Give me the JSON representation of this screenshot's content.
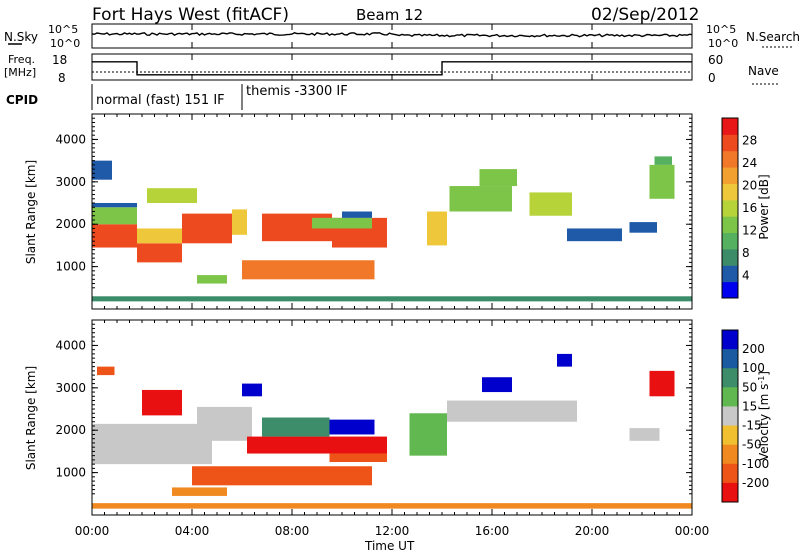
{
  "header": {
    "station": "Fort Hays West (fitACF)",
    "beam": "Beam 12",
    "date": "02/Sep/2012"
  },
  "noise_panel": {
    "left_label": "N.Sky",
    "right_label": "N.Search",
    "ticks": [
      "10^5",
      "10^0"
    ]
  },
  "freq_panel": {
    "left_label_1": "Freq.",
    "left_label_2": "[MHz]",
    "left_ticks": [
      "18",
      "8"
    ],
    "right_label": "Nave",
    "right_ticks": [
      "60",
      "0"
    ]
  },
  "cpid_panel": {
    "label": "CPID",
    "modes": [
      "normal (fast) 151 IF",
      "themis -3300 IF"
    ]
  },
  "power_colorbar": {
    "label": "Power [dB]",
    "ticks": [
      "28",
      "24",
      "20",
      "16",
      "12",
      "8",
      "4"
    ],
    "colors": [
      "#0000ee",
      "#1f5aa8",
      "#3c8c6a",
      "#55b060",
      "#7cc548",
      "#b6d43a",
      "#eec83a",
      "#f2a030",
      "#f07828",
      "#ee4a20",
      "#e81818"
    ]
  },
  "velocity_colorbar": {
    "label": "Velocity [m s",
    "exp": "-1",
    "close": "]",
    "ticks": [
      "200",
      "100",
      "50",
      "15",
      "-15",
      "-50",
      "-100",
      "-200"
    ],
    "colors": [
      "#0000cc",
      "#1a5aa0",
      "#3d8c6a",
      "#62b850",
      "#c8c8c8",
      "#f0c030",
      "#f08a20",
      "#ee5418",
      "#e81010"
    ]
  },
  "axes": {
    "ylabel": "Slant Range [km]",
    "yticks": [
      "4000",
      "3000",
      "2000",
      "1000"
    ],
    "xticks": [
      "00:00",
      "04:00",
      "08:00",
      "12:00",
      "16:00",
      "20:00",
      "00:00"
    ],
    "xlabel": "Time UT"
  },
  "chart_data": {
    "type": "heatmap",
    "x_unit": "UT hours",
    "xlim": [
      0,
      24
    ],
    "ylim": [
      0,
      4600
    ],
    "power_patches": [
      {
        "x0": 0.0,
        "x1": 1.8,
        "y0": 1450,
        "y1": 2000,
        "level": 28
      },
      {
        "x0": 0.0,
        "x1": 1.8,
        "y0": 2000,
        "y1": 2400,
        "level": 14
      },
      {
        "x0": 0.0,
        "x1": 1.8,
        "y0": 2400,
        "y1": 2500,
        "level": 6
      },
      {
        "x0": 0.0,
        "x1": 0.8,
        "y0": 3050,
        "y1": 3500,
        "level": 5
      },
      {
        "x0": 1.8,
        "x1": 3.6,
        "y0": 1100,
        "y1": 1550,
        "level": 26
      },
      {
        "x0": 1.8,
        "x1": 3.6,
        "y0": 1550,
        "y1": 1900,
        "level": 20
      },
      {
        "x0": 2.2,
        "x1": 4.2,
        "y0": 2500,
        "y1": 2850,
        "level": 15
      },
      {
        "x0": 3.6,
        "x1": 5.6,
        "y0": 1550,
        "y1": 2250,
        "level": 27
      },
      {
        "x0": 5.6,
        "x1": 6.2,
        "y0": 1750,
        "y1": 2350,
        "level": 18
      },
      {
        "x0": 4.2,
        "x1": 5.4,
        "y0": 600,
        "y1": 800,
        "level": 12
      },
      {
        "x0": 6.8,
        "x1": 9.6,
        "y0": 1600,
        "y1": 2250,
        "level": 27
      },
      {
        "x0": 9.6,
        "x1": 11.8,
        "y0": 1450,
        "y1": 2150,
        "level": 26
      },
      {
        "x0": 6.0,
        "x1": 11.3,
        "y0": 700,
        "y1": 1150,
        "level": 24
      },
      {
        "x0": 8.8,
        "x1": 11.2,
        "y0": 1900,
        "y1": 2150,
        "level": 13
      },
      {
        "x0": 10.0,
        "x1": 11.2,
        "y0": 2150,
        "y1": 2300,
        "level": 6
      },
      {
        "x0": 13.4,
        "x1": 14.2,
        "y0": 1500,
        "y1": 2300,
        "level": 20
      },
      {
        "x0": 14.3,
        "x1": 16.8,
        "y0": 2300,
        "y1": 2900,
        "level": 14
      },
      {
        "x0": 17.5,
        "x1": 19.2,
        "y0": 2200,
        "y1": 2750,
        "level": 15
      },
      {
        "x0": 15.5,
        "x1": 17.0,
        "y0": 2900,
        "y1": 3300,
        "level": 12
      },
      {
        "x0": 19.0,
        "x1": 21.2,
        "y0": 1600,
        "y1": 1900,
        "level": 6
      },
      {
        "x0": 21.5,
        "x1": 22.6,
        "y0": 1800,
        "y1": 2050,
        "level": 5
      },
      {
        "x0": 22.3,
        "x1": 23.3,
        "y0": 2600,
        "y1": 3400,
        "level": 12
      },
      {
        "x0": 22.5,
        "x1": 23.2,
        "y0": 3400,
        "y1": 3600,
        "level": 10
      },
      {
        "x0": 0.0,
        "x1": 24.0,
        "y0": 180,
        "y1": 300,
        "level": 8
      }
    ],
    "velocity_patches": [
      {
        "x0": 0.0,
        "x1": 4.8,
        "y0": 1200,
        "y1": 2150,
        "level": 0
      },
      {
        "x0": 4.2,
        "x1": 6.4,
        "y0": 1750,
        "y1": 2550,
        "level": 0
      },
      {
        "x0": 2.0,
        "x1": 3.6,
        "y0": 2350,
        "y1": 2950,
        "level": -220
      },
      {
        "x0": 0.2,
        "x1": 0.9,
        "y0": 3300,
        "y1": 3500,
        "level": -80
      },
      {
        "x0": 6.2,
        "x1": 11.8,
        "y0": 1450,
        "y1": 1850,
        "level": -210
      },
      {
        "x0": 6.8,
        "x1": 9.5,
        "y0": 1850,
        "y1": 2300,
        "level": 70
      },
      {
        "x0": 9.5,
        "x1": 11.3,
        "y0": 1900,
        "y1": 2250,
        "level": 210
      },
      {
        "x0": 9.5,
        "x1": 11.8,
        "y0": 1250,
        "y1": 1450,
        "level": -90
      },
      {
        "x0": 4.0,
        "x1": 11.2,
        "y0": 700,
        "y1": 1150,
        "level": -80
      },
      {
        "x0": 3.2,
        "x1": 5.4,
        "y0": 450,
        "y1": 650,
        "level": -60
      },
      {
        "x0": 6.0,
        "x1": 6.8,
        "y0": 2800,
        "y1": 3100,
        "level": 210
      },
      {
        "x0": 12.7,
        "x1": 14.2,
        "y0": 1400,
        "y1": 2400,
        "level": 40
      },
      {
        "x0": 14.2,
        "x1": 19.4,
        "y0": 2200,
        "y1": 2700,
        "level": 0
      },
      {
        "x0": 15.6,
        "x1": 16.8,
        "y0": 2900,
        "y1": 3250,
        "level": 210
      },
      {
        "x0": 18.6,
        "x1": 19.2,
        "y0": 3500,
        "y1": 3800,
        "level": 210
      },
      {
        "x0": 22.3,
        "x1": 23.3,
        "y0": 2800,
        "y1": 3400,
        "level": -220
      },
      {
        "x0": 21.5,
        "x1": 22.7,
        "y0": 1750,
        "y1": 2050,
        "level": 0
      },
      {
        "x0": 0.0,
        "x1": 24.0,
        "y0": 150,
        "y1": 280,
        "level": -60
      }
    ],
    "cpid_changes": [
      {
        "x": 0.0,
        "mode": "normal (fast) 151 IF"
      },
      {
        "x": 6.0,
        "mode": "themis -3300 IF"
      }
    ],
    "freq_steps": [
      {
        "x0": 0.0,
        "x1": 1.8,
        "mhz": 15
      },
      {
        "x0": 1.8,
        "x1": 14.0,
        "mhz": 10
      },
      {
        "x0": 14.0,
        "x1": 24.0,
        "mhz": 15
      }
    ]
  }
}
